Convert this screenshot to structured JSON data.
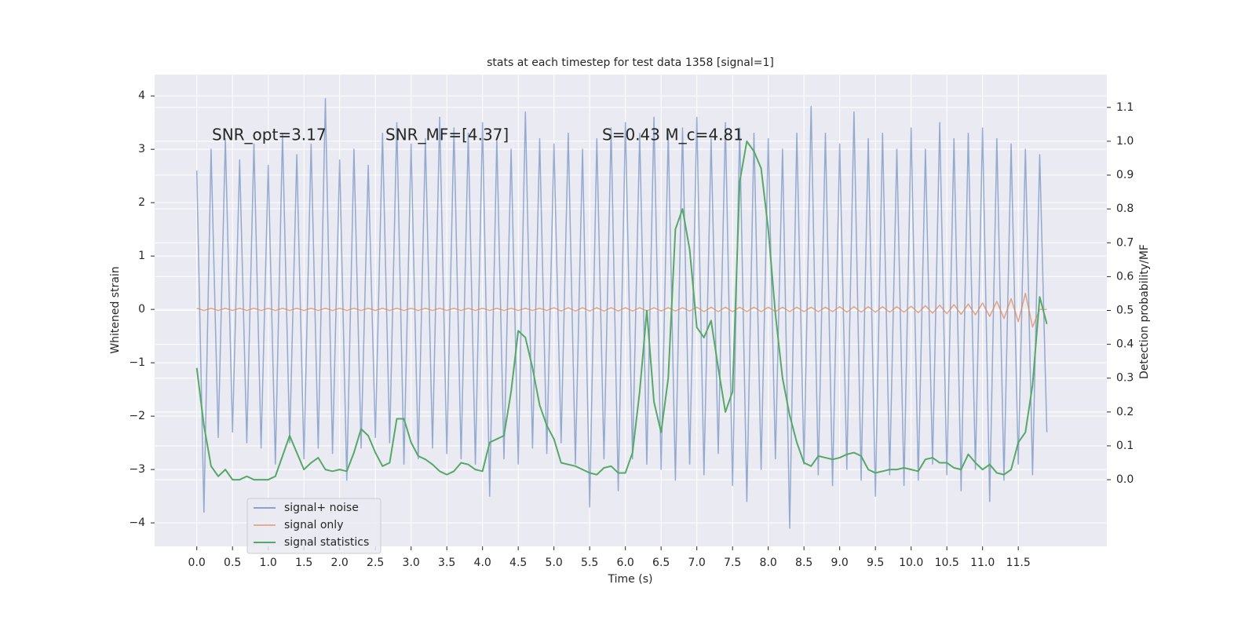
{
  "chart_data": {
    "type": "line",
    "title": "stats at each timestep for test data 1358 [signal=1]",
    "xlabel": "Time (s)",
    "ylabel": "Whitened strain",
    "y2label": "Detection probability/MF",
    "annotations": [
      "SNR_opt=3.17",
      "SNR_MF=[4.37]",
      "S=0.43   M_c=4.81"
    ],
    "grid": true,
    "legend": "lower left",
    "xlim": [
      -0.59,
      12.74
    ],
    "ylim": [
      -4.44,
      4.4
    ],
    "y2lim": [
      -0.197,
      1.197
    ],
    "xticks": [
      {
        "value": 0,
        "label": "0.0"
      },
      {
        "value": 0.5,
        "label": "0.5"
      },
      {
        "value": 1,
        "label": "1.0"
      },
      {
        "value": 1.5,
        "label": "1.5"
      },
      {
        "value": 2,
        "label": "2.0"
      },
      {
        "value": 2.5,
        "label": "2.5"
      },
      {
        "value": 3,
        "label": "3.0"
      },
      {
        "value": 3.5,
        "label": "3.5"
      },
      {
        "value": 4,
        "label": "4.0"
      },
      {
        "value": 4.5,
        "label": "4.5"
      },
      {
        "value": 5,
        "label": "5.0"
      },
      {
        "value": 5.5,
        "label": "5.5"
      },
      {
        "value": 6,
        "label": "6.0"
      },
      {
        "value": 6.5,
        "label": "6.5"
      },
      {
        "value": 7,
        "label": "7.0"
      },
      {
        "value": 7.5,
        "label": "7.5"
      },
      {
        "value": 8,
        "label": "8.0"
      },
      {
        "value": 8.5,
        "label": "8.5"
      },
      {
        "value": 9,
        "label": "9.0"
      },
      {
        "value": 9.5,
        "label": "9.5"
      },
      {
        "value": 10,
        "label": "10.0"
      },
      {
        "value": 10.5,
        "label": "10.5"
      },
      {
        "value": 11,
        "label": "11.0"
      },
      {
        "value": 11.5,
        "label": "11.5"
      }
    ],
    "yticks": [
      {
        "value": -4,
        "label": "−4"
      },
      {
        "value": -3,
        "label": "−3"
      },
      {
        "value": -2,
        "label": "−2"
      },
      {
        "value": -1,
        "label": "−1"
      },
      0,
      1,
      2,
      3,
      4
    ],
    "y2ticks": [
      {
        "value": 0,
        "label": "0.0"
      },
      0.1,
      0.2,
      0.3,
      0.4,
      0.5,
      0.6,
      0.7,
      0.8,
      0.9,
      {
        "value": 1,
        "label": "1.0"
      },
      1.1
    ],
    "x": [
      0,
      0.1,
      0.2,
      0.3,
      0.4,
      0.5,
      0.6,
      0.7,
      0.8,
      0.9,
      1,
      1.1,
      1.2,
      1.3,
      1.4,
      1.5,
      1.6,
      1.7,
      1.8,
      1.9,
      2,
      2.1,
      2.2,
      2.3,
      2.4,
      2.5,
      2.6,
      2.7,
      2.8,
      2.9,
      3,
      3.1,
      3.2,
      3.3,
      3.4,
      3.5,
      3.6,
      3.7,
      3.8,
      3.9,
      4,
      4.1,
      4.2,
      4.3,
      4.4,
      4.5,
      4.6,
      4.7,
      4.8,
      4.9,
      5,
      5.1,
      5.2,
      5.3,
      5.4,
      5.5,
      5.6,
      5.7,
      5.8,
      5.9,
      6,
      6.1,
      6.2,
      6.3,
      6.4,
      6.5,
      6.6,
      6.7,
      6.8,
      6.9,
      7,
      7.1,
      7.2,
      7.3,
      7.4,
      7.5,
      7.6,
      7.7,
      7.8,
      7.9,
      8,
      8.1,
      8.2,
      8.3,
      8.4,
      8.5,
      8.6,
      8.7,
      8.8,
      8.9,
      9,
      9.1,
      9.2,
      9.3,
      9.4,
      9.5,
      9.6,
      9.7,
      9.8,
      9.9,
      10,
      10.1,
      10.2,
      10.3,
      10.4,
      10.5,
      10.6,
      10.7,
      10.8,
      10.9,
      11,
      11.1,
      11.2,
      11.3,
      11.4,
      11.5,
      11.6,
      11.7,
      11.8,
      11.9
    ],
    "series": [
      {
        "name": "signal+ noise",
        "color": "#4c72b0",
        "values": [
          2.6,
          -3.8,
          3.0,
          -2.4,
          3.2,
          -2.3,
          2.8,
          -2.5,
          3.1,
          -2.6,
          2.7,
          -2.9,
          3.3,
          -2.5,
          2.9,
          -2.8,
          3.1,
          -2.6,
          3.95,
          -2.7,
          2.8,
          -3.2,
          3.0,
          -2.6,
          2.7,
          -2.4,
          3.3,
          -2.5,
          3.5,
          -2.9,
          3.1,
          -2.8,
          3.2,
          -2.6,
          3.6,
          -2.7,
          3.4,
          -2.8,
          3.3,
          -2.9,
          3.5,
          -3.5,
          3.2,
          -2.8,
          3.0,
          -2.9,
          3.7,
          -2.6,
          3.2,
          -2.7,
          3.1,
          -2.5,
          3.3,
          -2.9,
          3.0,
          -3.7,
          3.2,
          -2.8,
          3.4,
          -3.4,
          3.5,
          -2.8,
          3.3,
          -2.9,
          3.6,
          -3.0,
          3.3,
          -3.2,
          3.4,
          -2.9,
          3.6,
          -3.1,
          3.2,
          -2.7,
          3.5,
          -3.3,
          3.4,
          -3.6,
          3.3,
          -3.0,
          3.2,
          -2.8,
          3.0,
          -4.1,
          3.3,
          -2.9,
          3.8,
          -3.1,
          3.3,
          -3.3,
          3.1,
          -3.0,
          3.7,
          -3.2,
          3.2,
          -3.5,
          3.3,
          -3.1,
          3.0,
          -3.3,
          3.4,
          -3.2,
          3.0,
          -2.9,
          3.5,
          -3.1,
          3.2,
          -3.4,
          3.3,
          -3.0,
          3.4,
          -3.6,
          3.2,
          -3.2,
          3.1,
          -2.9,
          3.0,
          -3.1,
          2.9,
          -2.3
        ]
      },
      {
        "name": "signal only",
        "color": "#dd8452",
        "values": [
          0.02,
          -0.02,
          0.02,
          -0.02,
          0.02,
          -0.02,
          0.02,
          -0.02,
          0.02,
          -0.02,
          0.02,
          -0.02,
          0.02,
          -0.02,
          0.02,
          -0.02,
          0.02,
          -0.02,
          0.02,
          -0.02,
          0.02,
          -0.02,
          0.02,
          -0.02,
          0.02,
          -0.02,
          0.02,
          -0.02,
          0.02,
          -0.02,
          0.02,
          -0.02,
          0.02,
          -0.02,
          0.02,
          -0.02,
          0.02,
          -0.02,
          0.02,
          -0.02,
          0.02,
          -0.02,
          0.02,
          -0.02,
          0.02,
          -0.02,
          0.02,
          -0.02,
          0.02,
          -0.02,
          0.03,
          -0.03,
          0.03,
          -0.03,
          0.03,
          -0.03,
          0.03,
          -0.03,
          0.03,
          -0.03,
          0.03,
          -0.03,
          0.03,
          -0.03,
          0.03,
          -0.03,
          0.03,
          -0.03,
          0.03,
          -0.03,
          0.04,
          -0.04,
          0.04,
          -0.04,
          0.04,
          -0.04,
          0.04,
          -0.04,
          0.04,
          -0.04,
          0.04,
          -0.04,
          0.04,
          -0.04,
          0.04,
          -0.04,
          0.04,
          -0.04,
          0.04,
          -0.04,
          0.05,
          -0.05,
          0.05,
          -0.05,
          0.05,
          -0.05,
          0.05,
          -0.05,
          0.05,
          -0.05,
          0.06,
          -0.06,
          0.07,
          -0.07,
          0.08,
          -0.08,
          0.09,
          -0.09,
          0.1,
          -0.1,
          0.12,
          -0.13,
          0.15,
          -0.17,
          0.2,
          -0.23,
          0.3,
          -0.33,
          0,
          0
        ]
      },
      {
        "name": "signal statistics",
        "color": "#55a868",
        "axis": "y2",
        "values": [
          0.33,
          0.16,
          0.04,
          0.01,
          0.03,
          0.0,
          0.0,
          0.01,
          0.0,
          0.0,
          0.0,
          0.01,
          0.07,
          0.13,
          0.08,
          0.03,
          0.05,
          0.065,
          0.03,
          0.025,
          0.03,
          0.025,
          0.08,
          0.15,
          0.13,
          0.08,
          0.04,
          0.05,
          0.18,
          0.18,
          0.11,
          0.07,
          0.06,
          0.045,
          0.025,
          0.015,
          0.025,
          0.05,
          0.045,
          0.03,
          0.025,
          0.11,
          0.12,
          0.13,
          0.26,
          0.44,
          0.42,
          0.33,
          0.22,
          0.16,
          0.12,
          0.05,
          0.045,
          0.04,
          0.03,
          0.02,
          0.015,
          0.035,
          0.04,
          0.02,
          0.02,
          0.08,
          0.26,
          0.5,
          0.23,
          0.14,
          0.3,
          0.74,
          0.8,
          0.68,
          0.45,
          0.42,
          0.47,
          0.33,
          0.2,
          0.26,
          0.88,
          1.0,
          0.97,
          0.92,
          0.74,
          0.49,
          0.3,
          0.19,
          0.11,
          0.05,
          0.04,
          0.07,
          0.065,
          0.06,
          0.065,
          0.075,
          0.08,
          0.07,
          0.03,
          0.02,
          0.025,
          0.03,
          0.03,
          0.035,
          0.03,
          0.025,
          0.06,
          0.065,
          0.05,
          0.05,
          0.035,
          0.03,
          0.075,
          0.05,
          0.03,
          0.045,
          0.02,
          0.015,
          0.03,
          0.11,
          0.14,
          0.28,
          0.54,
          0.46
        ]
      }
    ]
  }
}
